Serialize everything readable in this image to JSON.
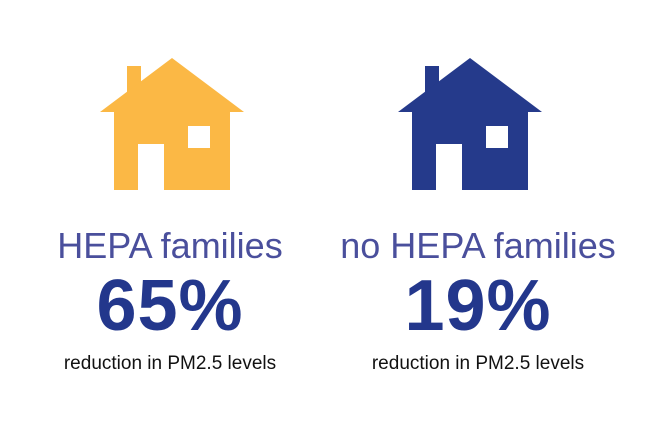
{
  "colors": {
    "label": "#4a4f9c",
    "value": "#23378c",
    "caption": "#111111",
    "house_hepa": "#fbb845",
    "house_no_hepa": "#253a8b",
    "window": "#ffffff"
  },
  "icons": {
    "house": "house-icon"
  },
  "panels": [
    {
      "label": "HEPA families",
      "value": "65%",
      "caption": "reduction in PM2.5 levels"
    },
    {
      "label": "no HEPA families",
      "value": "19%",
      "caption": "reduction in PM2.5 levels"
    }
  ]
}
